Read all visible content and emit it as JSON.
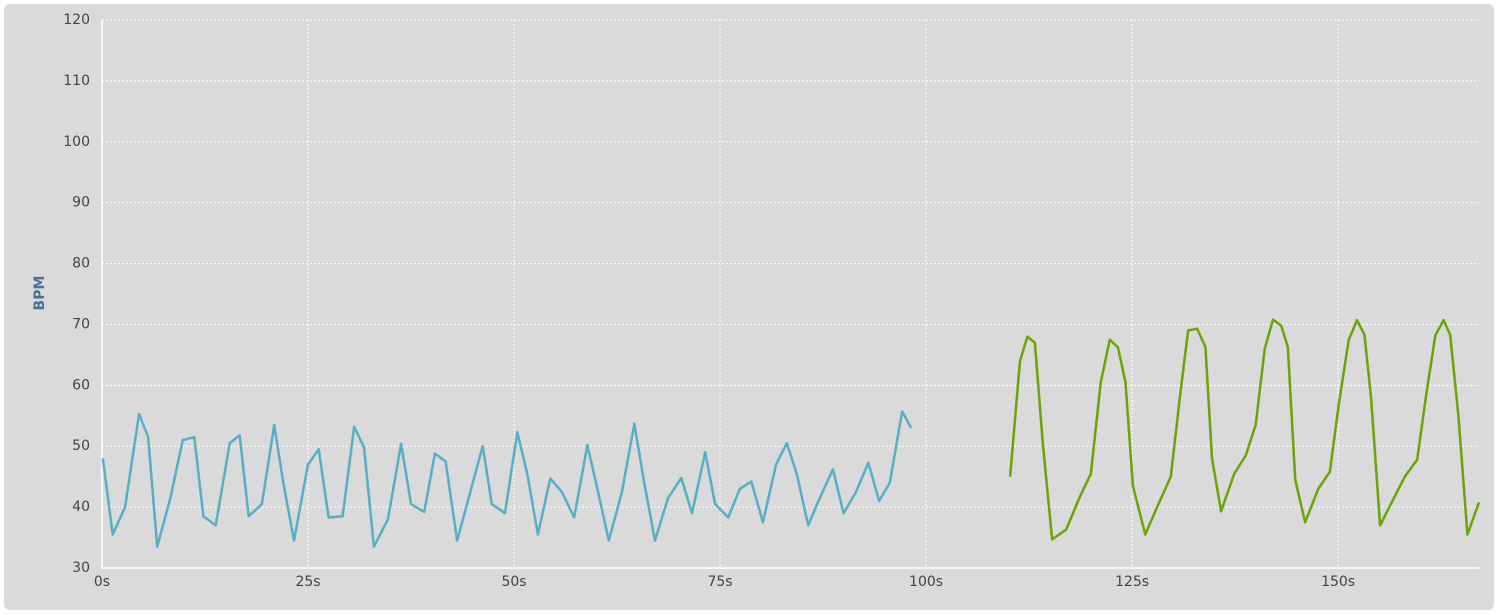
{
  "chart_data": {
    "type": "line",
    "y_label": "BPM",
    "xlim": [
      0,
      167.1
    ],
    "ylim": [
      30,
      120
    ],
    "xticks": [
      {
        "value": 0,
        "label": "0s"
      },
      {
        "value": 25,
        "label": "25s"
      },
      {
        "value": 50,
        "label": "50s"
      },
      {
        "value": 75,
        "label": "75s"
      },
      {
        "value": 100,
        "label": "100s"
      },
      {
        "value": 125,
        "label": "125s"
      },
      {
        "value": 150,
        "label": "150s"
      }
    ],
    "yticks": [
      30,
      40,
      50,
      60,
      70,
      80,
      90,
      100,
      110,
      120
    ],
    "grid": true,
    "series": [
      {
        "color": "#5aaec4",
        "x": [
          0.1,
          1.3,
          2.8,
          4.5,
          5.6,
          6.7,
          8.3,
          9.8,
          11.2,
          12.3,
          13.8,
          15.5,
          16.7,
          17.8,
          19.4,
          20.9,
          22.0,
          23.3,
          25.0,
          26.3,
          27.5,
          29.2,
          30.6,
          31.8,
          33.0,
          34.7,
          36.3,
          37.5,
          39.1,
          40.4,
          41.7,
          43.1,
          44.7,
          46.2,
          47.3,
          48.9,
          50.4,
          51.6,
          52.9,
          54.4,
          55.8,
          57.3,
          58.9,
          60.2,
          61.5,
          63.1,
          64.6,
          65.8,
          67.1,
          68.7,
          70.3,
          71.6,
          73.2,
          74.4,
          76.0,
          77.4,
          78.8,
          80.2,
          81.8,
          83.1,
          84.3,
          85.7,
          87.1,
          88.7,
          90.0,
          91.5,
          93.0,
          94.3,
          95.6,
          97.1,
          98.2
        ],
        "values": [
          48,
          35.5,
          40,
          55.3,
          51.5,
          33.5,
          41.5,
          51,
          51.5,
          38.5,
          37,
          50.5,
          51.8,
          38.5,
          40.5,
          53.5,
          44,
          34.5,
          47,
          49.5,
          38.3,
          38.5,
          53.2,
          49.8,
          33.5,
          38,
          50.4,
          40.5,
          39.2,
          48.8,
          47.5,
          34.5,
          42.5,
          50,
          40.5,
          39,
          52.3,
          45.5,
          35.5,
          44.7,
          42.5,
          38.3,
          50.2,
          42.5,
          34.5,
          42.5,
          53.7,
          44,
          34.5,
          41.5,
          44.8,
          39,
          49,
          40.5,
          38.3,
          43,
          44.2,
          37.5,
          47,
          50.5,
          45.5,
          37,
          41.5,
          46.2,
          39,
          42.5,
          47.3,
          41,
          44,
          55.7,
          53
        ]
      },
      {
        "color": "#6aa40a",
        "x": [
          110.2,
          111.4,
          112.3,
          113.2,
          114.2,
          115.3,
          117.0,
          118.6,
          120.0,
          121.2,
          122.3,
          123.3,
          124.2,
          125.1,
          126.6,
          128.2,
          129.7,
          130.8,
          131.8,
          132.9,
          133.9,
          134.7,
          135.8,
          137.4,
          138.8,
          140.0,
          141.1,
          142.1,
          143.1,
          143.9,
          144.8,
          146.0,
          147.6,
          149.0,
          150.1,
          151.3,
          152.3,
          153.2,
          154.0,
          155.1,
          156.7,
          158.1,
          159.6,
          160.7,
          161.8,
          162.8,
          163.6,
          164.6,
          165.7,
          167.1
        ],
        "values": [
          45,
          64,
          68,
          67,
          50,
          34.7,
          36.3,
          41.5,
          45.5,
          60.5,
          67.5,
          66.2,
          60.5,
          43.5,
          35.5,
          40.5,
          45,
          58,
          69,
          69.3,
          66.3,
          48,
          39.3,
          45.5,
          48.5,
          53.5,
          66,
          70.8,
          69.8,
          66.3,
          44.5,
          37.5,
          43,
          45.8,
          57,
          67.5,
          70.7,
          68.3,
          58,
          37,
          41.3,
          45,
          47.8,
          58.5,
          68.2,
          70.7,
          68.3,
          55,
          35.5,
          40.8
        ]
      }
    ]
  }
}
